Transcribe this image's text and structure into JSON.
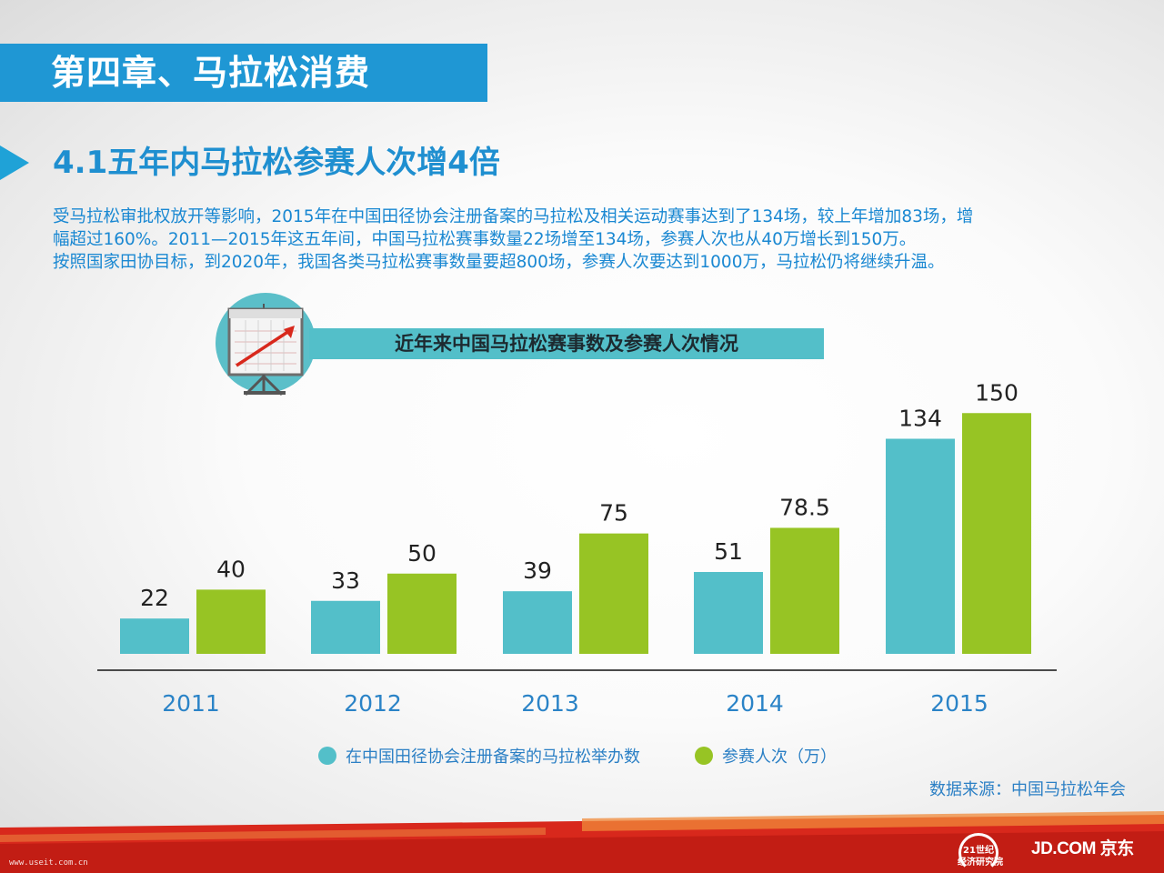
{
  "chapter_title": "第四章、马拉松消费",
  "section_title": "4.1五年内马拉松参赛人次增4倍",
  "intro_lines": [
    "受马拉松审批权放开等影响，2015年在中国田径协会注册备案的马拉松及相关运动赛事达到了134场，较上年增加83场，增",
    "幅超过160%。2011—2015年这五年间，中国马拉松赛事数量22场增至134场，参赛人次也从40万增长到150万。",
    "按照国家田协目标，到2020年，我国各类马拉松赛事数量要超800场，参赛人次要达到1000万，马拉松仍将继续升温。"
  ],
  "colors": {
    "accent_blue": "#1f97d4",
    "text_blue": "#1a88d2",
    "teal": "#53bfc9",
    "green": "#97c424",
    "footer_red": "#d8281c"
  },
  "chart_data": {
    "type": "bar",
    "title": "近年来中国马拉松赛事数及参赛人次情况",
    "categories": [
      "2011",
      "2012",
      "2013",
      "2014",
      "2015"
    ],
    "series": [
      {
        "name": "在中国田径协会注册备案的马拉松举办数",
        "color": "#53bfc9",
        "values": [
          22,
          33,
          39,
          51,
          134
        ]
      },
      {
        "name": "参赛人次（万）",
        "color": "#97c424",
        "values": [
          40,
          50,
          75,
          78.5,
          150
        ]
      }
    ],
    "data_labels": [
      [
        "22",
        "33",
        "39",
        "51",
        "134"
      ],
      [
        "40",
        "50",
        "75",
        "78.5",
        "150"
      ]
    ],
    "legend_position": "bottom",
    "grid": false
  },
  "source": "数据来源：中国马拉松年会",
  "watermark": "www.useit.com.cn",
  "footer_logos": {
    "logo_21": "21世纪经济研究院",
    "jd": "JD.COM 京东"
  }
}
